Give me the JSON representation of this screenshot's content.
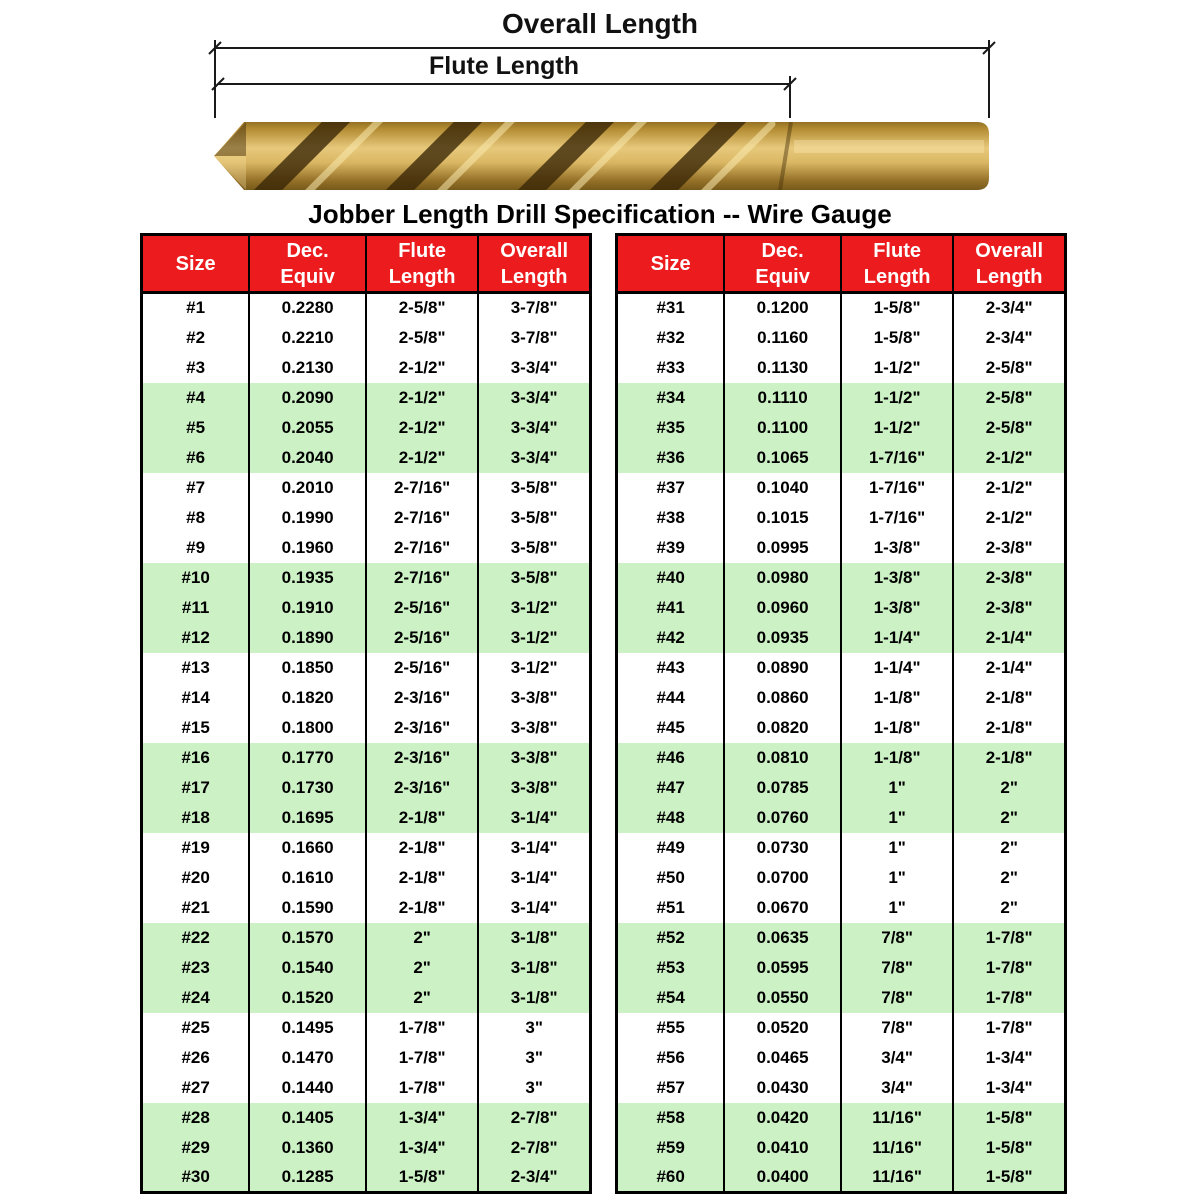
{
  "title": "Jobber Length Drill Specification -- Wire Gauge",
  "diagram": {
    "overall_length_label": "Overall Length",
    "flute_length_label": "Flute Length",
    "drill_bit": "drill-bit-photo"
  },
  "colors": {
    "header_bg": "#EC1C1E",
    "header_text": "#FFFFFF",
    "row_green": "#CBF1C4",
    "row_white": "#FFFFFF",
    "table_border": "#000000",
    "drill_gold_light": "#E7C97C",
    "drill_gold_dark": "#63490F"
  },
  "chart_data": [
    {
      "type": "table",
      "title": "Jobber Length Drill Specification -- Wire Gauge (sizes #1-#30)",
      "columns": [
        [
          "Size"
        ],
        [
          "Dec.",
          "Equiv"
        ],
        [
          "Flute",
          "Length"
        ],
        [
          "Overall",
          "Length"
        ]
      ],
      "rows": [
        [
          "#1",
          "0.2280",
          "2-5/8\"",
          "3-7/8\""
        ],
        [
          "#2",
          "0.2210",
          "2-5/8\"",
          "3-7/8\""
        ],
        [
          "#3",
          "0.2130",
          "2-1/2\"",
          "3-3/4\""
        ],
        [
          "#4",
          "0.2090",
          "2-1/2\"",
          "3-3/4\""
        ],
        [
          "#5",
          "0.2055",
          "2-1/2\"",
          "3-3/4\""
        ],
        [
          "#6",
          "0.2040",
          "2-1/2\"",
          "3-3/4\""
        ],
        [
          "#7",
          "0.2010",
          "2-7/16\"",
          "3-5/8\""
        ],
        [
          "#8",
          "0.1990",
          "2-7/16\"",
          "3-5/8\""
        ],
        [
          "#9",
          "0.1960",
          "2-7/16\"",
          "3-5/8\""
        ],
        [
          "#10",
          "0.1935",
          "2-7/16\"",
          "3-5/8\""
        ],
        [
          "#11",
          "0.1910",
          "2-5/16\"",
          "3-1/2\""
        ],
        [
          "#12",
          "0.1890",
          "2-5/16\"",
          "3-1/2\""
        ],
        [
          "#13",
          "0.1850",
          "2-5/16\"",
          "3-1/2\""
        ],
        [
          "#14",
          "0.1820",
          "2-3/16\"",
          "3-3/8\""
        ],
        [
          "#15",
          "0.1800",
          "2-3/16\"",
          "3-3/8\""
        ],
        [
          "#16",
          "0.1770",
          "2-3/16\"",
          "3-3/8\""
        ],
        [
          "#17",
          "0.1730",
          "2-3/16\"",
          "3-3/8\""
        ],
        [
          "#18",
          "0.1695",
          "2-1/8\"",
          "3-1/4\""
        ],
        [
          "#19",
          "0.1660",
          "2-1/8\"",
          "3-1/4\""
        ],
        [
          "#20",
          "0.1610",
          "2-1/8\"",
          "3-1/4\""
        ],
        [
          "#21",
          "0.1590",
          "2-1/8\"",
          "3-1/4\""
        ],
        [
          "#22",
          "0.1570",
          "2\"",
          "3-1/8\""
        ],
        [
          "#23",
          "0.1540",
          "2\"",
          "3-1/8\""
        ],
        [
          "#24",
          "0.1520",
          "2\"",
          "3-1/8\""
        ],
        [
          "#25",
          "0.1495",
          "1-7/8\"",
          "3\""
        ],
        [
          "#26",
          "0.1470",
          "1-7/8\"",
          "3\""
        ],
        [
          "#27",
          "0.1440",
          "1-7/8\"",
          "3\""
        ],
        [
          "#28",
          "0.1405",
          "1-3/4\"",
          "2-7/8\""
        ],
        [
          "#29",
          "0.1360",
          "1-3/4\"",
          "2-7/8\""
        ],
        [
          "#30",
          "0.1285",
          "1-5/8\"",
          "2-3/4\""
        ]
      ]
    },
    {
      "type": "table",
      "title": "Jobber Length Drill Specification -- Wire Gauge (sizes #31-#60)",
      "columns": [
        [
          "Size"
        ],
        [
          "Dec.",
          "Equiv"
        ],
        [
          "Flute",
          "Length"
        ],
        [
          "Overall",
          "Length"
        ]
      ],
      "rows": [
        [
          "#31",
          "0.1200",
          "1-5/8\"",
          "2-3/4\""
        ],
        [
          "#32",
          "0.1160",
          "1-5/8\"",
          "2-3/4\""
        ],
        [
          "#33",
          "0.1130",
          "1-1/2\"",
          "2-5/8\""
        ],
        [
          "#34",
          "0.1110",
          "1-1/2\"",
          "2-5/8\""
        ],
        [
          "#35",
          "0.1100",
          "1-1/2\"",
          "2-5/8\""
        ],
        [
          "#36",
          "0.1065",
          "1-7/16\"",
          "2-1/2\""
        ],
        [
          "#37",
          "0.1040",
          "1-7/16\"",
          "2-1/2\""
        ],
        [
          "#38",
          "0.1015",
          "1-7/16\"",
          "2-1/2\""
        ],
        [
          "#39",
          "0.0995",
          "1-3/8\"",
          "2-3/8\""
        ],
        [
          "#40",
          "0.0980",
          "1-3/8\"",
          "2-3/8\""
        ],
        [
          "#41",
          "0.0960",
          "1-3/8\"",
          "2-3/8\""
        ],
        [
          "#42",
          "0.0935",
          "1-1/4\"",
          "2-1/4\""
        ],
        [
          "#43",
          "0.0890",
          "1-1/4\"",
          "2-1/4\""
        ],
        [
          "#44",
          "0.0860",
          "1-1/8\"",
          "2-1/8\""
        ],
        [
          "#45",
          "0.0820",
          "1-1/8\"",
          "2-1/8\""
        ],
        [
          "#46",
          "0.0810",
          "1-1/8\"",
          "2-1/8\""
        ],
        [
          "#47",
          "0.0785",
          "1\"",
          "2\""
        ],
        [
          "#48",
          "0.0760",
          "1\"",
          "2\""
        ],
        [
          "#49",
          "0.0730",
          "1\"",
          "2\""
        ],
        [
          "#50",
          "0.0700",
          "1\"",
          "2\""
        ],
        [
          "#51",
          "0.0670",
          "1\"",
          "2\""
        ],
        [
          "#52",
          "0.0635",
          "7/8\"",
          "1-7/8\""
        ],
        [
          "#53",
          "0.0595",
          "7/8\"",
          "1-7/8\""
        ],
        [
          "#54",
          "0.0550",
          "7/8\"",
          "1-7/8\""
        ],
        [
          "#55",
          "0.0520",
          "7/8\"",
          "1-7/8\""
        ],
        [
          "#56",
          "0.0465",
          "3/4\"",
          "1-3/4\""
        ],
        [
          "#57",
          "0.0430",
          "3/4\"",
          "1-3/4\""
        ],
        [
          "#58",
          "0.0420",
          "11/16\"",
          "1-5/8\""
        ],
        [
          "#59",
          "0.0410",
          "11/16\"",
          "1-5/8\""
        ],
        [
          "#60",
          "0.0400",
          "11/16\"",
          "1-5/8\""
        ]
      ]
    }
  ]
}
